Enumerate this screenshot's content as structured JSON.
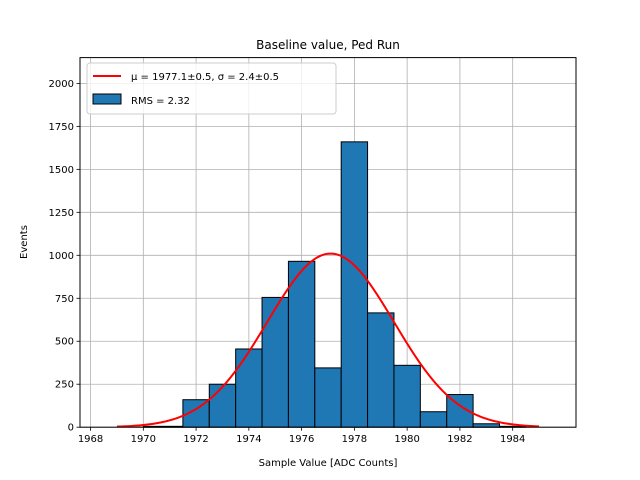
{
  "chart_data": {
    "type": "bar",
    "title": "Baseline value, Ped Run",
    "xlabel": "Sample Value [ADC Counts]",
    "ylabel": "Events",
    "xlim": [
      1967.6,
      1986.4
    ],
    "ylim": [
      0,
      2150
    ],
    "xticks": [
      1968,
      1970,
      1972,
      1974,
      1976,
      1978,
      1980,
      1982,
      1984
    ],
    "yticks": [
      0,
      250,
      500,
      750,
      1000,
      1250,
      1500,
      1750,
      2000
    ],
    "grid": true,
    "legend_position": "upper-left",
    "bar_color": "#1f77b4",
    "fit_color": "#ff0000",
    "histogram": {
      "name": "RMS = 2.32",
      "bins": [
        {
          "x0": 1969.0,
          "x1": 1970.0,
          "value": 0
        },
        {
          "x0": 1970.0,
          "x1": 1971.5,
          "value": 5
        },
        {
          "x0": 1971.5,
          "x1": 1972.5,
          "value": 160
        },
        {
          "x0": 1972.5,
          "x1": 1973.5,
          "value": 250
        },
        {
          "x0": 1973.5,
          "x1": 1974.5,
          "value": 455
        },
        {
          "x0": 1974.5,
          "x1": 1975.5,
          "value": 755
        },
        {
          "x0": 1975.5,
          "x1": 1976.5,
          "value": 965
        },
        {
          "x0": 1976.5,
          "x1": 1977.5,
          "value": 345
        },
        {
          "x0": 1977.5,
          "x1": 1978.5,
          "value": 1660
        },
        {
          "x0": 1978.5,
          "x1": 1979.5,
          "value": 665
        },
        {
          "x0": 1979.5,
          "x1": 1980.5,
          "value": 360
        },
        {
          "x0": 1980.5,
          "x1": 1981.5,
          "value": 90
        },
        {
          "x0": 1981.5,
          "x1": 1982.5,
          "value": 190
        },
        {
          "x0": 1982.5,
          "x1": 1983.5,
          "value": 20
        },
        {
          "x0": 1983.5,
          "x1": 1984.5,
          "value": 5
        }
      ]
    },
    "fit": {
      "name": "μ = 1977.1±0.5, σ = 2.4±0.5",
      "mu": 1977.1,
      "sigma": 2.4,
      "amplitude": 1010,
      "x_range": [
        1969,
        1985
      ]
    }
  }
}
